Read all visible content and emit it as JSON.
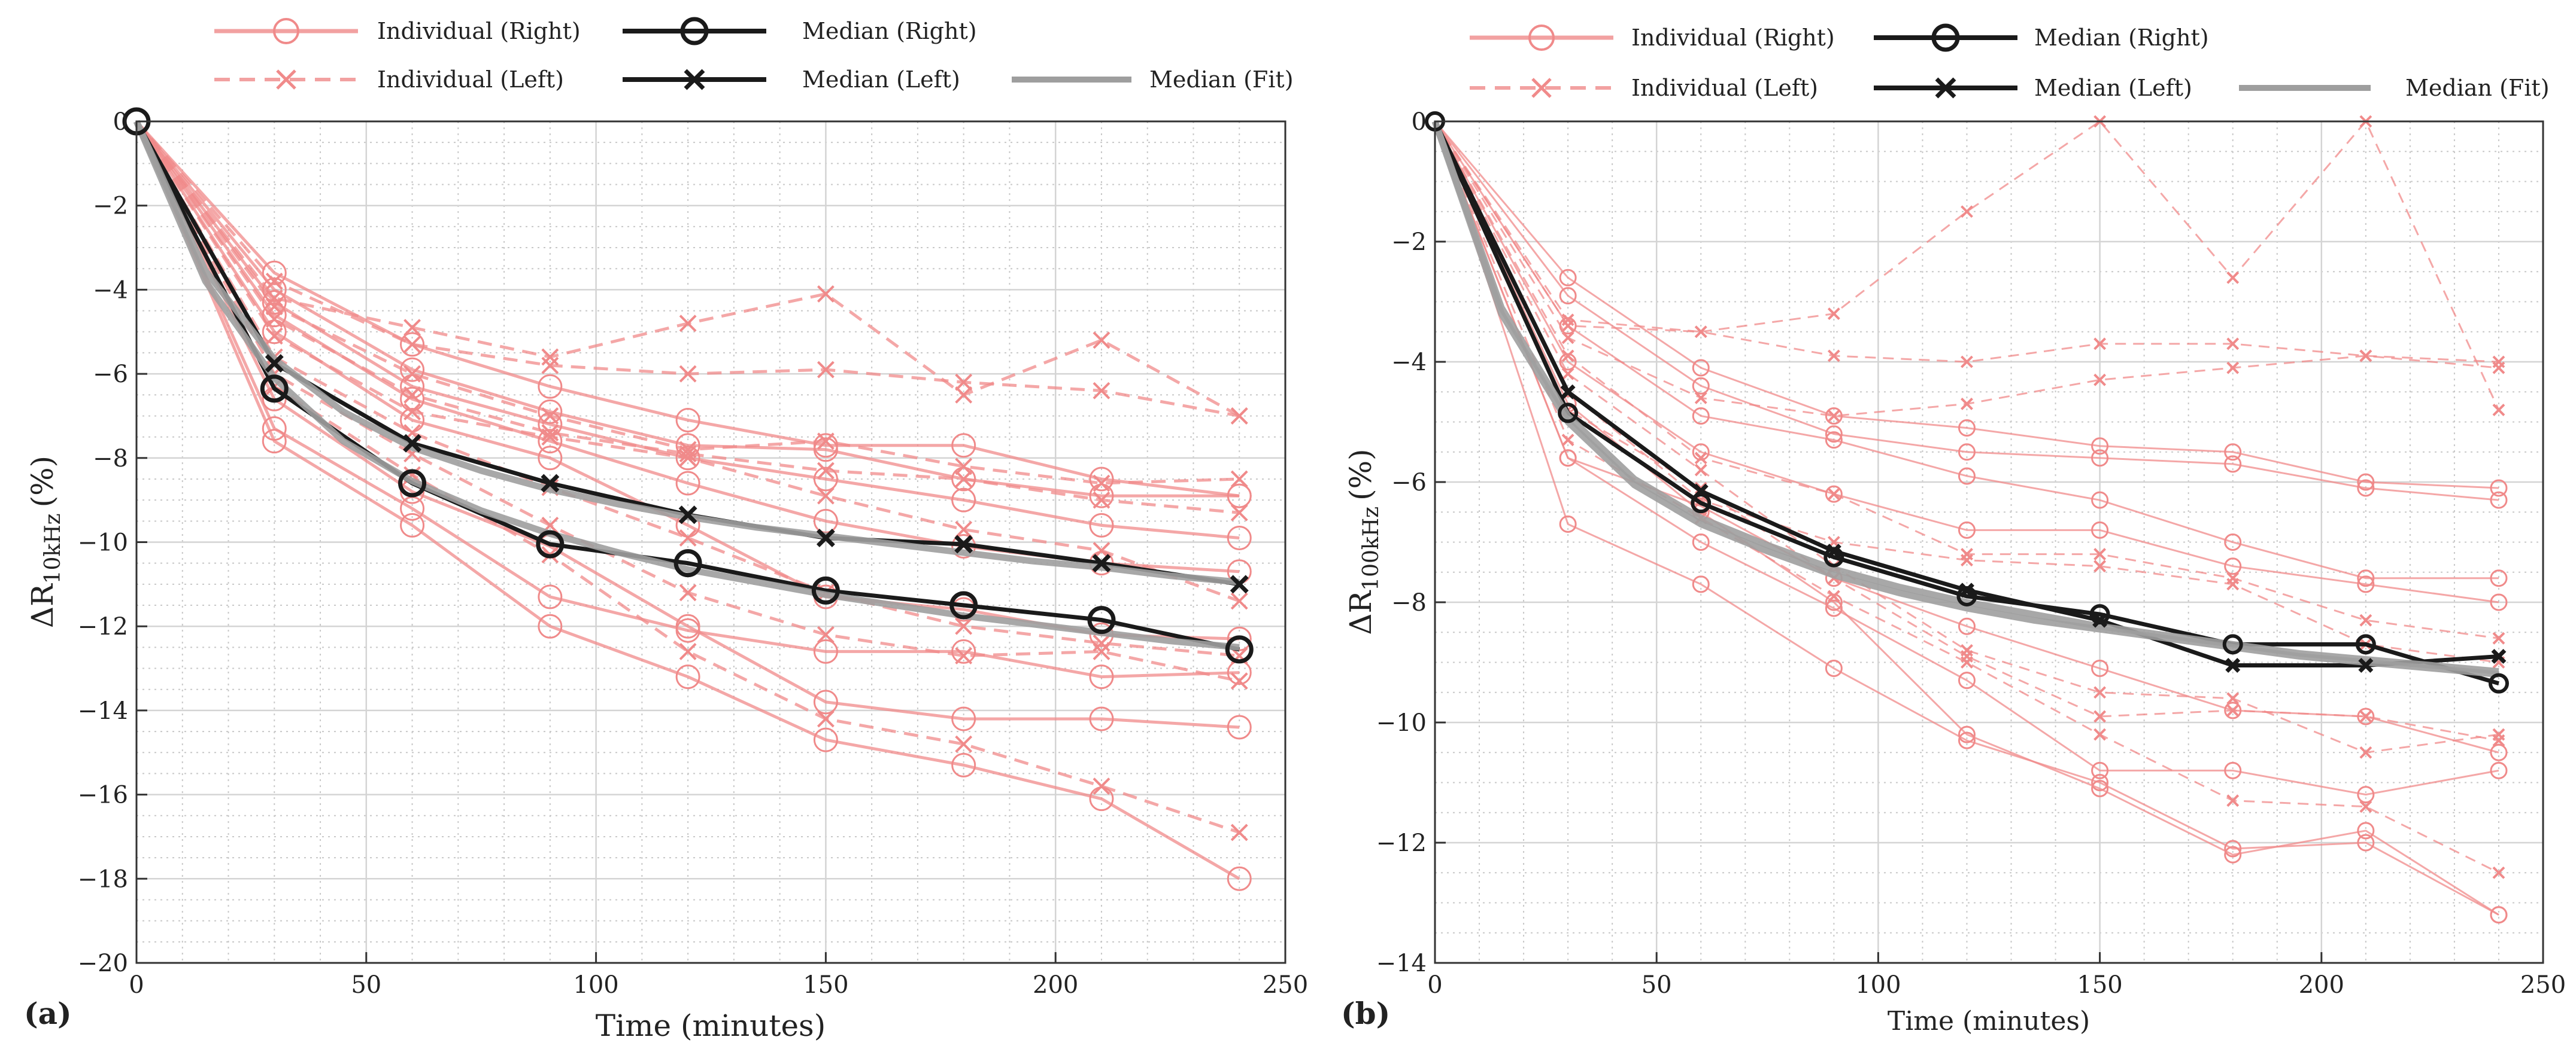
{
  "colors": {
    "individual": "#f08a8a",
    "median": "#1a1a1a",
    "fit": "#9e9e9e",
    "grid_major": "#d4d4d4",
    "grid_minor": "#c8c8c8",
    "axis": "#333333"
  },
  "chart_data": [
    {
      "id": "a",
      "type": "line",
      "panel_label": "(a)",
      "xlabel": "Time (minutes)",
      "ylabel_main": "ΔR",
      "ylabel_sub": "10kHz",
      "ylabel_unit": "(%)",
      "xlim": [
        0,
        250
      ],
      "ylim": [
        -20,
        0
      ],
      "xticks": [
        0,
        50,
        100,
        150,
        200,
        250
      ],
      "yticks": [
        -20,
        -18,
        -16,
        -14,
        -12,
        -10,
        -8,
        -6,
        -4,
        -2,
        0
      ],
      "xtick_labels": [
        "0",
        "50",
        "100",
        "150",
        "200",
        "250"
      ],
      "ytick_labels": [
        "−20",
        "−18",
        "−16",
        "−14",
        "−12",
        "−10",
        "−8",
        "−6",
        "−4",
        "−2",
        "0"
      ],
      "legend": {
        "individual_right": "Individual (Right)",
        "individual_left": "Individual (Left)",
        "median_right": "Median (Right)",
        "median_left": "Median (Left)",
        "median_fit": "Median (Fit)"
      },
      "x": [
        0,
        30,
        60,
        90,
        120,
        150,
        180,
        210,
        240
      ],
      "individual_right": [
        [
          0,
          -3.6,
          -5.3,
          -6.3,
          -7.1,
          -7.7,
          -7.7,
          -8.5,
          -8.9
        ],
        [
          0,
          -4.0,
          -5.9,
          -6.9,
          -7.7,
          -7.8,
          -8.5,
          -8.9,
          -8.9
        ],
        [
          0,
          -4.3,
          -6.3,
          -7.2,
          -8.0,
          -8.5,
          -9.0,
          -9.6,
          -9.9
        ],
        [
          0,
          -4.6,
          -6.6,
          -7.6,
          -8.6,
          -9.5,
          -10.1,
          -10.5,
          -10.7
        ],
        [
          0,
          -5.0,
          -7.1,
          -8.0,
          -9.6,
          -11.3,
          -11.6,
          -12.2,
          -12.3
        ],
        [
          0,
          -6.6,
          -8.8,
          -10.1,
          -12.0,
          -13.8,
          -14.2,
          -14.2,
          -14.4
        ],
        [
          0,
          -7.3,
          -9.2,
          -11.3,
          -12.1,
          -12.6,
          -12.6,
          -13.2,
          -13.1
        ],
        [
          0,
          -7.6,
          -9.6,
          -12.0,
          -13.2,
          -14.7,
          -15.3,
          -16.1,
          -18.0
        ]
      ],
      "individual_left": [
        [
          0,
          -4.2,
          -4.9,
          -5.6,
          -4.8,
          -4.1,
          -6.5,
          -5.2,
          -7.0
        ],
        [
          0,
          -3.8,
          -5.3,
          -5.8,
          -6.0,
          -5.9,
          -6.2,
          -6.4,
          -7.0
        ],
        [
          0,
          -4.4,
          -6.0,
          -7.0,
          -7.8,
          -7.6,
          -8.2,
          -8.6,
          -8.5
        ],
        [
          0,
          -4.7,
          -6.5,
          -7.4,
          -7.9,
          -8.3,
          -8.5,
          -9.0,
          -9.3
        ],
        [
          0,
          -5.1,
          -6.9,
          -7.5,
          -8.0,
          -8.9,
          -9.7,
          -10.2,
          -11.4
        ],
        [
          0,
          -5.6,
          -7.4,
          -8.7,
          -9.9,
          -11.2,
          -12.0,
          -12.4,
          -12.7
        ],
        [
          0,
          -6.0,
          -7.9,
          -9.6,
          -11.2,
          -12.2,
          -12.7,
          -12.6,
          -13.3
        ],
        [
          0,
          -6.3,
          -8.4,
          -10.3,
          -12.6,
          -14.2,
          -14.8,
          -15.8,
          -16.9
        ]
      ],
      "median_right": [
        0,
        -6.35,
        -8.6,
        -10.05,
        -10.5,
        -11.15,
        -11.5,
        -11.85,
        -12.55
      ],
      "median_left": [
        0,
        -5.75,
        -7.65,
        -8.6,
        -9.35,
        -9.9,
        -10.05,
        -10.5,
        -11.0
      ],
      "fit_x": [
        0,
        15,
        30,
        45,
        60,
        75,
        90,
        105,
        120,
        135,
        150,
        165,
        180,
        195,
        210,
        225,
        240
      ],
      "fit_right": [
        0,
        -3.8,
        -6.1,
        -7.6,
        -8.55,
        -9.25,
        -9.8,
        -10.25,
        -10.65,
        -10.95,
        -11.25,
        -11.5,
        -11.75,
        -11.95,
        -12.15,
        -12.35,
        -12.5
      ],
      "fit_left": [
        0,
        -3.55,
        -5.65,
        -6.9,
        -7.75,
        -8.3,
        -8.75,
        -9.1,
        -9.4,
        -9.65,
        -9.85,
        -10.05,
        -10.25,
        -10.45,
        -10.6,
        -10.8,
        -10.95
      ]
    },
    {
      "id": "b",
      "type": "line",
      "panel_label": "(b)",
      "xlabel": "Time (minutes)",
      "ylabel_main": "ΔR",
      "ylabel_sub": "100kHz",
      "ylabel_unit": "(%)",
      "xlim": [
        0,
        250
      ],
      "ylim": [
        -14,
        0
      ],
      "xticks": [
        0,
        50,
        100,
        150,
        200,
        250
      ],
      "yticks": [
        -14,
        -12,
        -10,
        -8,
        -6,
        -4,
        -2,
        0
      ],
      "xtick_labels": [
        "0",
        "50",
        "100",
        "150",
        "200",
        "250"
      ],
      "ytick_labels": [
        "−14",
        "−12",
        "−10",
        "−8",
        "−6",
        "−4",
        "−2",
        "0"
      ],
      "legend": {
        "individual_right": "Individual (Right)",
        "individual_left": "Individual (Left)",
        "median_right": "Median (Right)",
        "median_left": "Median (Left)",
        "median_fit": "Median (Fit)"
      },
      "x": [
        0,
        30,
        60,
        90,
        120,
        150,
        180,
        210,
        240
      ],
      "individual_right": [
        [
          0,
          -2.6,
          -4.1,
          -4.9,
          -5.1,
          -5.4,
          -5.5,
          -6.0,
          -6.1
        ],
        [
          0,
          -2.9,
          -4.4,
          -5.2,
          -5.5,
          -5.6,
          -5.7,
          -6.1,
          -6.3
        ],
        [
          0,
          -3.4,
          -4.9,
          -5.3,
          -5.9,
          -6.3,
          -7.0,
          -7.6,
          -7.6
        ],
        [
          0,
          -4.0,
          -5.5,
          -6.2,
          -6.8,
          -6.8,
          -7.4,
          -7.7,
          -8.0
        ],
        [
          0,
          -5.6,
          -6.4,
          -7.6,
          -8.4,
          -9.1,
          -9.8,
          -9.9,
          -10.5
        ],
        [
          0,
          -5.6,
          -7.0,
          -8.1,
          -9.3,
          -10.8,
          -10.8,
          -11.2,
          -10.8
        ],
        [
          0,
          -4.7,
          -6.5,
          -8.0,
          -10.2,
          -11.1,
          -12.2,
          -11.8,
          -13.2
        ],
        [
          0,
          -6.7,
          -7.7,
          -9.1,
          -10.3,
          -11.0,
          -12.1,
          -12.0,
          -13.2
        ]
      ],
      "individual_left": [
        [
          0,
          -3.4,
          -3.5,
          -3.2,
          -1.5,
          0.0,
          -2.6,
          0.0,
          -4.8
        ],
        [
          0,
          -3.3,
          -3.5,
          -3.9,
          -4.0,
          -3.7,
          -3.7,
          -3.9,
          -4.0
        ],
        [
          0,
          -3.6,
          -4.6,
          -4.9,
          -4.7,
          -4.3,
          -4.1,
          -3.9,
          -4.1
        ],
        [
          0,
          -3.9,
          -5.6,
          -6.2,
          -7.2,
          -7.2,
          -7.6,
          -8.3,
          -8.6
        ],
        [
          0,
          -4.5,
          -6.3,
          -7.0,
          -7.3,
          -7.4,
          -7.7,
          -8.7,
          -9.0
        ],
        [
          0,
          -4.8,
          -6.1,
          -7.6,
          -8.9,
          -9.9,
          -9.8,
          -9.9,
          -10.3
        ],
        [
          0,
          -5.3,
          -6.6,
          -7.9,
          -9.0,
          -10.2,
          -11.3,
          -11.4,
          -12.5
        ],
        [
          0,
          -4.2,
          -5.8,
          -7.4,
          -8.8,
          -9.5,
          -9.6,
          -10.5,
          -10.2
        ]
      ],
      "median_right": [
        0,
        -4.85,
        -6.35,
        -7.25,
        -7.9,
        -8.2,
        -8.7,
        -8.7,
        -9.35
      ],
      "median_left": [
        0,
        -4.5,
        -6.15,
        -7.15,
        -7.8,
        -8.3,
        -9.05,
        -9.05,
        -8.9
      ],
      "fit_x": [
        0,
        15,
        30,
        45,
        60,
        75,
        90,
        105,
        120,
        135,
        150,
        165,
        180,
        195,
        210,
        225,
        240
      ],
      "fit_right": [
        0,
        -3.1,
        -4.9,
        -5.95,
        -6.6,
        -7.05,
        -7.45,
        -7.75,
        -8.0,
        -8.2,
        -8.4,
        -8.55,
        -8.7,
        -8.85,
        -8.95,
        -9.05,
        -9.15
      ],
      "fit_left": [
        0,
        -3.2,
        -5.0,
        -6.05,
        -6.7,
        -7.15,
        -7.55,
        -7.85,
        -8.1,
        -8.3,
        -8.45,
        -8.6,
        -8.75,
        -8.9,
        -9.0,
        -9.1,
        -9.2
      ]
    }
  ]
}
